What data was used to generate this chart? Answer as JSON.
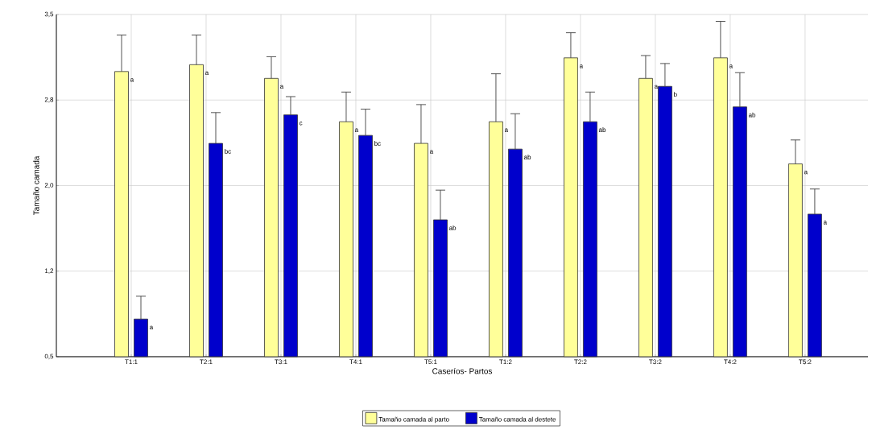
{
  "chart_data": {
    "type": "bar",
    "xlabel": "Caseríos- Partos",
    "ylabel": "Tamaño camada",
    "categories": [
      "T1:1",
      "T2:1",
      "T3:1",
      "T4:1",
      "T5:1",
      "T1:2",
      "T2:2",
      "T3:2",
      "T4:2",
      "T5:2"
    ],
    "series": [
      {
        "name": "Tamaño camada al parto",
        "color": "#ffff99",
        "values": [
          3.0,
          3.06,
          2.94,
          2.56,
          2.37,
          2.56,
          3.12,
          2.94,
          3.12,
          2.19
        ],
        "errors": [
          [
            3.0,
            3.32
          ],
          [
            3.06,
            3.32
          ],
          [
            2.94,
            3.13
          ],
          [
            2.56,
            2.82
          ],
          [
            2.37,
            2.71
          ],
          [
            2.56,
            2.98
          ],
          [
            3.12,
            3.34
          ],
          [
            2.94,
            3.14
          ],
          [
            3.12,
            3.44
          ],
          [
            2.19,
            2.4
          ]
        ],
        "value_labels": [
          "a",
          "a",
          "a",
          "a",
          "a",
          "a",
          "a",
          "a",
          "a",
          "a"
        ]
      },
      {
        "name": "Tamaño camada al destete",
        "color": "#0000cc",
        "values": [
          0.83,
          2.37,
          2.62,
          2.44,
          1.7,
          2.32,
          2.56,
          2.87,
          2.69,
          1.75
        ],
        "errors": [
          [
            0.83,
            1.03
          ],
          [
            2.37,
            2.64
          ],
          [
            2.62,
            2.78
          ],
          [
            2.44,
            2.67
          ],
          [
            1.7,
            1.96
          ],
          [
            2.32,
            2.63
          ],
          [
            2.56,
            2.82
          ],
          [
            2.87,
            3.07
          ],
          [
            2.69,
            2.99
          ],
          [
            1.75,
            1.97
          ]
        ],
        "value_labels": [
          "a",
          "bc",
          "c",
          "bc",
          "ab",
          "ab",
          "ab",
          "b",
          "ab",
          "a"
        ]
      }
    ],
    "ylim": [
      0.5,
      3.5
    ],
    "yticks": [
      {
        "value": 0.5,
        "label": "0,5"
      },
      {
        "value": 1.25,
        "label": "1,2"
      },
      {
        "value": 2.0,
        "label": "2,0"
      },
      {
        "value": 2.75,
        "label": "2,8"
      },
      {
        "value": 3.5,
        "label": "3,5"
      }
    ],
    "grid": true,
    "legend": "bottom"
  }
}
